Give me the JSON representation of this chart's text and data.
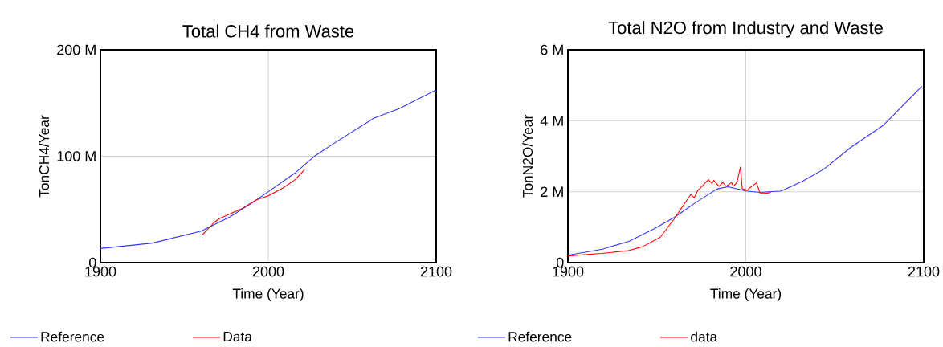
{
  "chart_data": [
    {
      "type": "line",
      "title": "Total CH4 from Waste",
      "xlabel": "Time (Year)",
      "ylabel": "TonCH4/Year",
      "xlim": [
        1900,
        2100
      ],
      "xticks": [
        1900,
        2000,
        2100
      ],
      "ylim": [
        0,
        200
      ],
      "yticks": [
        {
          "value": 0,
          "label": "0"
        },
        {
          "value": 100,
          "label": "100 M"
        },
        {
          "value": 200,
          "label": "200 M"
        }
      ],
      "grid": true,
      "legend": "bottom",
      "series": [
        {
          "name": "Reference",
          "color": "#3333ff",
          "x": [
            1900,
            1931,
            1960,
            1977,
            1992,
            2000,
            2016,
            2028,
            2039,
            2063,
            2078,
            2100
          ],
          "values": [
            13.3,
            18.4,
            29.7,
            42.8,
            57.9,
            66.7,
            84.3,
            100.6,
            112,
            135.8,
            144.7,
            162.3
          ]
        },
        {
          "name": "Data",
          "color": "#ff0000",
          "x": [
            1960.6,
            1967.7,
            1971,
            1983.7,
            1993,
            2000,
            2009,
            2016,
            2021.6
          ],
          "values": [
            25.9,
            37.7,
            41.5,
            50.3,
            59.1,
            62.9,
            70.4,
            78,
            87.3
          ]
        }
      ]
    },
    {
      "type": "line",
      "title": "Total N2O from Industry and Waste",
      "xlabel": "Time (Year)",
      "ylabel": "TonN2O/Year",
      "xlim": [
        1900,
        2100
      ],
      "xticks": [
        1900,
        2000,
        2100
      ],
      "ylim": [
        0,
        6
      ],
      "yticks": [
        {
          "value": 0,
          "label": "0"
        },
        {
          "value": 2,
          "label": "2 M"
        },
        {
          "value": 4,
          "label": "4 M"
        },
        {
          "value": 6,
          "label": "6 M"
        }
      ],
      "grid": true,
      "legend": "bottom",
      "series": [
        {
          "name": "Reference",
          "color": "#3333ff",
          "x": [
            1900,
            1919.3,
            1934.3,
            1949.4,
            1959.9,
            1972,
            1984,
            1990,
            2000,
            2008,
            2020,
            2032,
            2044,
            2059,
            2077,
            2099
          ],
          "values": [
            0.21,
            0.38,
            0.6,
            0.98,
            1.28,
            1.7,
            2.08,
            2.14,
            2.02,
            1.98,
            2.02,
            2.3,
            2.64,
            3.25,
            3.86,
            4.97
          ]
        },
        {
          "name": "data",
          "color": "#ff0000",
          "x": [
            1900,
            1919,
            1934,
            1942,
            1952,
            1960,
            1969,
            1971,
            1973,
            1974,
            1979,
            1981,
            1982,
            1985,
            1987,
            1989,
            1992,
            1993,
            1995,
            1997,
            1998,
            2001,
            2002,
            2006,
            2008,
            2011,
            2014
          ],
          "values": [
            0.19,
            0.26,
            0.34,
            0.45,
            0.72,
            1.25,
            1.92,
            1.83,
            2.04,
            2.08,
            2.34,
            2.23,
            2.32,
            2.15,
            2.26,
            2.15,
            2.26,
            2.15,
            2.26,
            2.7,
            2.08,
            2.04,
            2.1,
            2.25,
            1.96,
            1.95,
            1.98
          ]
        }
      ]
    }
  ]
}
